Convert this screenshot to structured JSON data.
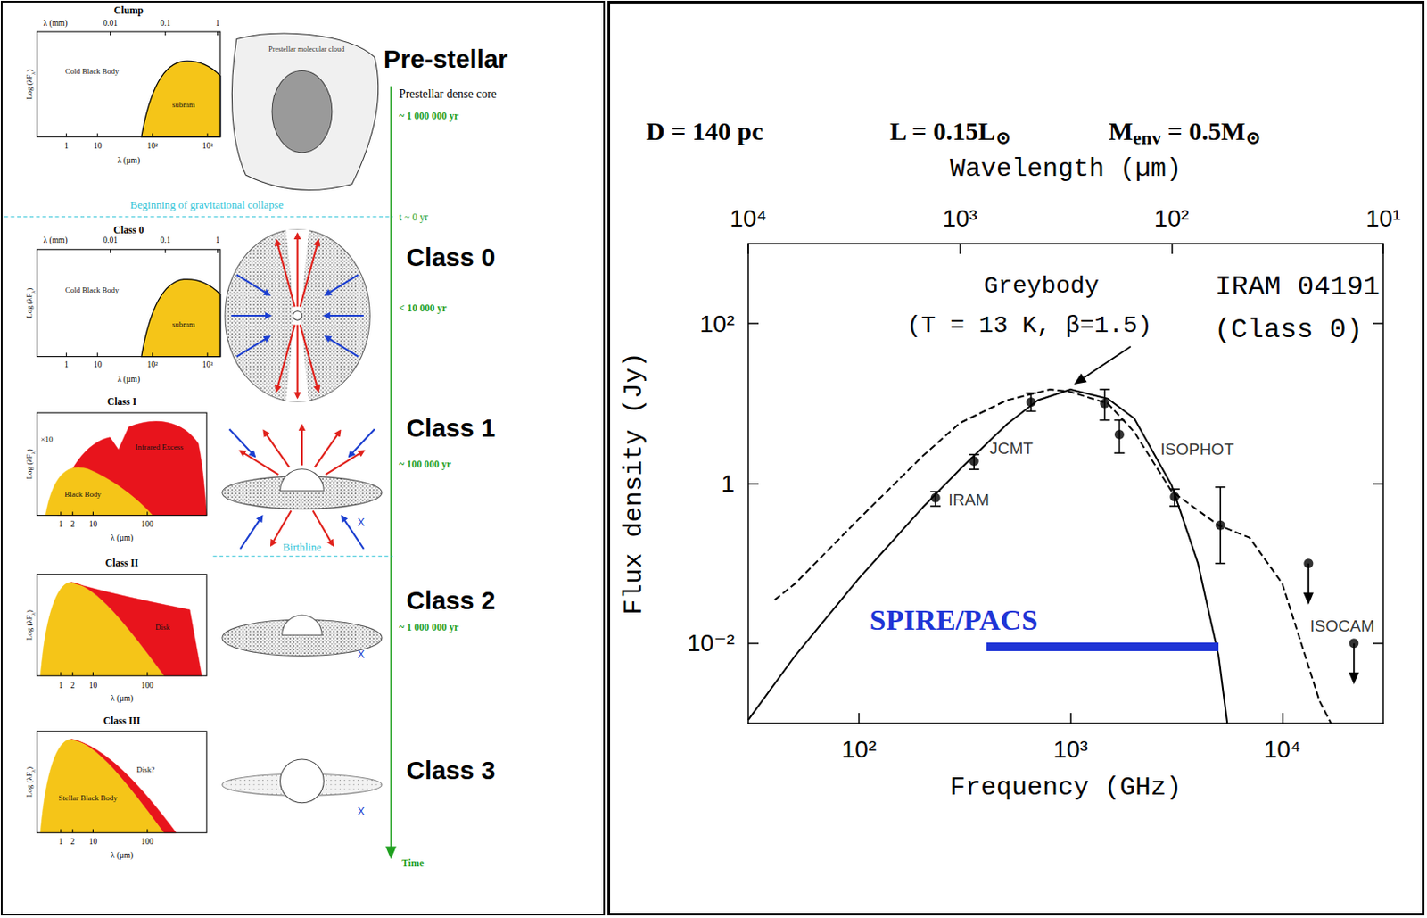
{
  "chart_data": {
    "type": "scatter",
    "title": "IRAM 04191",
    "subtitle": "(Class 0)",
    "header": [
      [
        "D = 140 pc"
      ],
      [
        "L = 0.15L",
        "⊙"
      ],
      [
        "M",
        "env",
        " = 0.5M",
        "⊙"
      ]
    ],
    "x_label": "Frequency (GHz)",
    "x2_label": "Wavelength (µm)",
    "y_label": "Flux density (Jy)",
    "log": true,
    "grid": false,
    "xlim": [
      30,
      30000
    ],
    "xticks": [
      {
        "value": 100,
        "label": "10²"
      },
      {
        "value": 1000,
        "label": "10³"
      },
      {
        "value": 10000,
        "label": "10⁴"
      }
    ],
    "x2lim": [
      10000,
      10
    ],
    "x2ticks": [
      {
        "value": 10000,
        "label": "10⁴"
      },
      {
        "value": 1000,
        "label": "10³"
      },
      {
        "value": 100,
        "label": "10²"
      },
      {
        "value": 10,
        "label": "10¹"
      }
    ],
    "ylim": [
      0.001,
      1000
    ],
    "yticks": [
      {
        "value": 0.01,
        "label": "10⁻²"
      },
      1,
      {
        "value": 100,
        "label": "10²"
      }
    ],
    "series": [
      {
        "name": "IRAM",
        "type": "scatter",
        "marker": "circle",
        "color": "#000000",
        "x": [
          230
        ],
        "values": [
          0.66
        ],
        "err_low": [
          0.52
        ],
        "err_high": [
          0.79
        ]
      },
      {
        "name": "JCMT",
        "type": "scatter",
        "marker": "circle",
        "color": "#000000",
        "x": [
          350,
          650
        ],
        "values": [
          1.9,
          10.4
        ],
        "err_low": [
          1.5,
          8.0
        ],
        "err_high": [
          2.3,
          13.5
        ]
      },
      {
        "name": "ISOPHOT",
        "type": "scatter",
        "marker": "circle",
        "color": "#000000",
        "x": [
          1450,
          1700,
          3100,
          5100
        ],
        "values": [
          10,
          4.1,
          0.68,
          0.3
        ],
        "err_low": [
          6.2,
          2.4,
          0.52,
          0.1
        ],
        "err_high": [
          15,
          6.2,
          0.85,
          0.9
        ]
      },
      {
        "name": "ISOCAM",
        "type": "scatter",
        "marker": "upper_limit",
        "color": "#000000",
        "x": [
          13300,
          21800
        ],
        "values": [
          0.1,
          0.01
        ]
      },
      {
        "type": "line",
        "line_style": "solid",
        "color": "#000000",
        "label": [
          "Greybody",
          "(T = 13 K, β=1.5)"
        ],
        "x": [
          30,
          50,
          100,
          200,
          300,
          500,
          700,
          1000,
          1500,
          2000,
          3000,
          4000,
          5000,
          5500
        ],
        "values": [
          0.0011,
          0.007,
          0.065,
          0.5,
          1.5,
          5.5,
          11,
          15,
          11.5,
          6.5,
          0.95,
          0.1,
          0.007,
          0.001
        ]
      },
      {
        "type": "line",
        "line_style": "dashed",
        "color": "#000000",
        "x": [
          40,
          50,
          100,
          200,
          300,
          500,
          800,
          1000,
          1500,
          2000,
          3000,
          5000,
          7000,
          10000,
          15000,
          17000
        ],
        "values": [
          0.035,
          0.056,
          0.36,
          2.2,
          5.7,
          11,
          15,
          14,
          10,
          4.4,
          0.8,
          0.3,
          0.21,
          0.056,
          0.0019,
          0.001
        ]
      },
      {
        "name": "SPIRE/PACS",
        "type": "band",
        "color": "#1f35d6",
        "x": [
          400,
          5000
        ],
        "values": [
          0.009,
          0.009
        ]
      }
    ]
  },
  "diagram": {
    "timeline_label": "Time",
    "collapse": {
      "text": "Beginning of gravitational collapse",
      "time": "t ~ 0 yr"
    },
    "birthline": "Birthline",
    "stages": [
      {
        "name": "Pre-stellar",
        "sketch": "Prestellar molecular cloud",
        "note": "Prestellar dense core",
        "age": "~ 1 000 000 yr",
        "plot": {
          "title": "Clump",
          "top_axis": "λ (mm)",
          "top_ticks": [
            "0.01",
            "0.1",
            "1"
          ],
          "x_label": "λ (µm)",
          "x_ticks": [
            "1",
            "10",
            "10²",
            "10³"
          ],
          "y_label": [
            "Log (λF",
            "λ",
            ")"
          ],
          "areas": [
            {
              "text": "Cold Black Body"
            },
            {
              "text": "submm",
              "color": "#f5c518"
            }
          ]
        }
      },
      {
        "name": "Class 0",
        "age": "< 10 000 yr",
        "plot": {
          "title": "Class 0",
          "top_axis": "λ (mm)",
          "top_ticks": [
            "0.01",
            "0.1",
            "1"
          ],
          "x_label": "λ (µm)",
          "x_ticks": [
            "1",
            "10",
            "10²",
            "10³"
          ],
          "y_label": [
            "Log (λF",
            "λ",
            ")"
          ],
          "areas": [
            {
              "text": "Cold Black Body"
            },
            {
              "text": "submm",
              "color": "#f5c518"
            }
          ]
        }
      },
      {
        "name": "Class 1",
        "age": "~ 100 000 yr",
        "mark": "X",
        "plot": {
          "title": "Class I",
          "x_label": "λ (µm)",
          "x_ticks": [
            "1",
            "2",
            "10",
            "100"
          ],
          "y_label": [
            "Log (λF",
            "λ",
            ")"
          ],
          "scale_note": "×10",
          "areas": [
            {
              "text": "Infrared Excess",
              "color": "#e8141c"
            },
            {
              "text": "Black Body",
              "color": "#f5c518"
            }
          ]
        }
      },
      {
        "name": "Class 2",
        "age": "~ 1 000 000 yr",
        "mark": "X",
        "plot": {
          "title": "Class II",
          "x_label": "λ (µm)",
          "x_ticks": [
            "1",
            "2",
            "10",
            "100"
          ],
          "y_label": [
            "Log (λF",
            "λ",
            ")"
          ],
          "areas": [
            {
              "color": "#f5c518"
            },
            {
              "text": "Disk",
              "color": "#e8141c"
            }
          ]
        }
      },
      {
        "name": "Class 3",
        "mark": "X",
        "plot": {
          "title": "Class III",
          "x_label": "λ (µm)",
          "x_ticks": [
            "1",
            "2",
            "10",
            "100"
          ],
          "y_label": [
            "Log (λF",
            "λ",
            ")"
          ],
          "areas": [
            {
              "text": "Stellar Black Body",
              "color": "#f5c518"
            },
            {
              "text": "Disk?",
              "color": "#e8141c"
            }
          ]
        }
      }
    ]
  }
}
